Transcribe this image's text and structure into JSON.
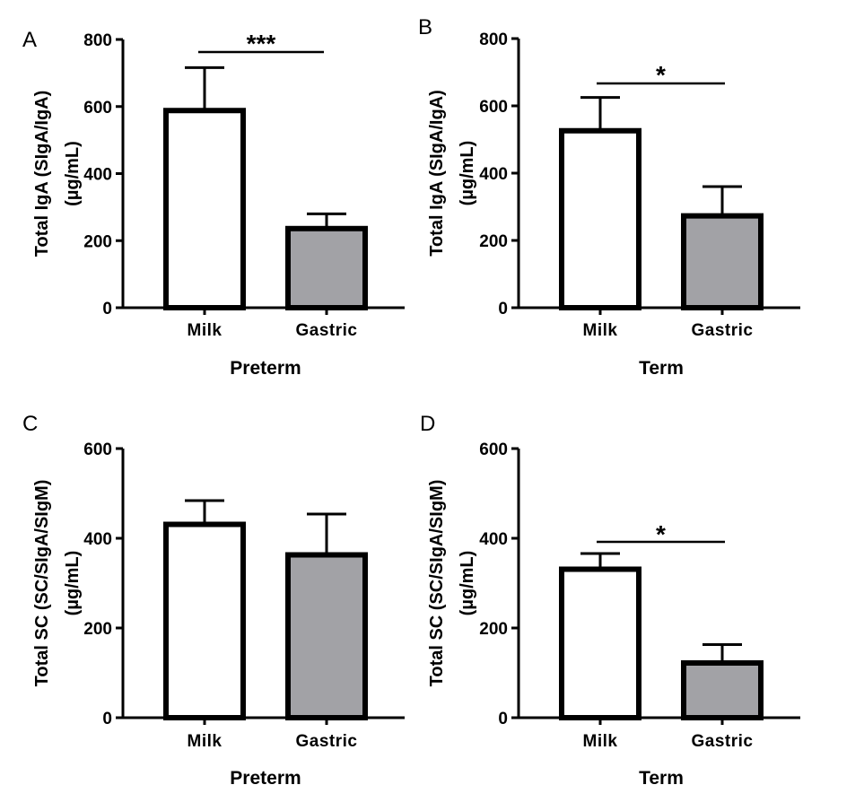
{
  "colors": {
    "milk_fill": "#ffffff",
    "gastric_fill": "#a2a2a6",
    "stroke": "#000000"
  },
  "chart_data": [
    {
      "panel": "A",
      "type": "bar",
      "categories": [
        "Milk",
        "Gastric"
      ],
      "values": [
        588,
        236
      ],
      "error_upper": [
        716,
        280
      ],
      "ylabel_lines": [
        "Total IgA (SIgA/IgA)",
        "(µg/mL)"
      ],
      "xlabel": "Preterm",
      "ylim": [
        0,
        800
      ],
      "yticks": [
        0,
        200,
        400,
        600,
        800
      ],
      "significance": "***"
    },
    {
      "panel": "B",
      "type": "bar",
      "categories": [
        "Milk",
        "Gastric"
      ],
      "values": [
        526,
        273
      ],
      "error_upper": [
        625,
        360
      ],
      "ylabel_lines": [
        "Total IgA (SIgA/IgA)",
        "(µg/mL)"
      ],
      "xlabel": "Term",
      "ylim": [
        0,
        800
      ],
      "yticks": [
        0,
        200,
        400,
        600,
        800
      ],
      "significance": "*"
    },
    {
      "panel": "C",
      "type": "bar",
      "categories": [
        "Milk",
        "Gastric"
      ],
      "values": [
        431,
        363
      ],
      "error_upper": [
        484,
        454
      ],
      "ylabel_lines": [
        "Total SC (SC/SIgA/SIgM)",
        "(µg/mL)"
      ],
      "xlabel": "Preterm",
      "ylim": [
        0,
        600
      ],
      "yticks": [
        0,
        200,
        400,
        600
      ],
      "significance": ""
    },
    {
      "panel": "D",
      "type": "bar",
      "categories": [
        "Milk",
        "Gastric"
      ],
      "values": [
        331,
        122
      ],
      "error_upper": [
        366,
        163
      ],
      "ylabel_lines": [
        "Total SC (SC/SIgA/SIgM)",
        "(µg/mL)"
      ],
      "xlabel": "Term",
      "ylim": [
        0,
        600
      ],
      "yticks": [
        0,
        200,
        400,
        600
      ],
      "significance": "*"
    }
  ]
}
